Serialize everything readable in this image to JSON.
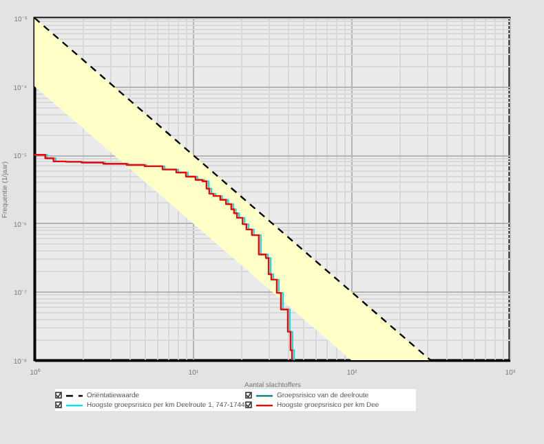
{
  "chart_data": {
    "type": "step",
    "xlabel": "Aantal slachtoffers",
    "ylabel": "Frequentie (1/jaar)",
    "log": "xy",
    "grid": true,
    "legend": "bottom",
    "xlim": [
      1,
      1000
    ],
    "ylim": [
      1e-08,
      0.001
    ],
    "xticks": [
      {
        "value": 1,
        "label": "10⁰"
      },
      {
        "value": 10,
        "label": "10¹"
      },
      {
        "value": 100,
        "label": "10²"
      },
      {
        "value": 1000,
        "label": "10³"
      }
    ],
    "yticks": [
      {
        "value": 1e-08,
        "label": "10⁻⁸"
      },
      {
        "value": 1e-07,
        "label": "10⁻⁷"
      },
      {
        "value": 1e-06,
        "label": "10⁻⁶"
      },
      {
        "value": 1e-05,
        "label": "10⁻⁵"
      },
      {
        "value": 0.0001,
        "label": "10⁻⁴"
      },
      {
        "value": 0.001,
        "label": "10⁻³"
      }
    ],
    "series": [
      {
        "type": "line",
        "name": "Oriëntatiewaarde",
        "color": "#000000",
        "line_style": "dashed",
        "x": [
          1,
          10,
          100,
          316.2
        ],
        "values": [
          0.001,
          1e-05,
          1e-07,
          1e-08
        ],
        "lower": [
          0.0001,
          1e-06,
          1e-08,
          1e-08
        ],
        "upper": [
          0.001,
          1e-05,
          1e-07,
          1e-08
        ]
      },
      {
        "name": "Groepsrisico van de deelroute",
        "color": "#008080"
      },
      {
        "name": "Hoogste groepsrisico per km Deelroute 1, 747-1744",
        "color": "#00e5ee",
        "x": [
          1,
          1.2,
          1.36,
          1.63,
          2.04,
          2.8,
          3.93,
          5.1,
          6.63,
          8.1,
          9.3,
          10.7,
          11.8,
          12.6,
          13.1,
          13.9,
          15.3,
          16.7,
          18.0,
          18.7,
          19.6,
          21.2,
          22.5,
          24.3,
          26.9,
          29.8,
          31.0,
          32.2,
          34.9,
          37.1,
          41.0,
          42.6,
          43.6
        ],
        "values": [
          1e-05,
          8.9e-06,
          8e-06,
          7.9e-06,
          7.7e-06,
          7.4e-06,
          7.1e-06,
          6.8e-06,
          6.1e-06,
          5.5e-06,
          4.8e-06,
          4.3e-06,
          4.1e-06,
          3.2e-06,
          2.7e-06,
          2.5e-06,
          2.2e-06,
          1.9e-06,
          1.6e-06,
          1.4e-06,
          1.2e-06,
          9.7e-07,
          8.1e-07,
          6.7e-07,
          3.5e-07,
          3.1e-07,
          1.8e-07,
          1.5e-07,
          9.6e-08,
          5.5e-08,
          2.6e-08,
          1.4e-08,
          1e-08
        ]
      },
      {
        "name": "Hoogste groepsrisico per km Dee",
        "color": "#ff0000",
        "x": [
          1,
          1.17,
          1.32,
          1.58,
          1.98,
          2.72,
          3.82,
          4.96,
          6.44,
          7.86,
          9.05,
          10.4,
          11.5,
          12.2,
          12.7,
          13.5,
          14.9,
          16.2,
          17.5,
          18.2,
          19.0,
          20.6,
          21.8,
          23.6,
          26.1,
          28.9,
          30.1,
          31.3,
          33.9,
          36.0,
          39.8,
          41.4,
          42.3
        ],
        "values": [
          1e-05,
          8.9e-06,
          8e-06,
          7.9e-06,
          7.7e-06,
          7.4e-06,
          7.1e-06,
          6.8e-06,
          6.1e-06,
          5.5e-06,
          4.8e-06,
          4.3e-06,
          4.1e-06,
          3.2e-06,
          2.7e-06,
          2.5e-06,
          2.2e-06,
          1.9e-06,
          1.6e-06,
          1.4e-06,
          1.2e-06,
          9.7e-07,
          8.1e-07,
          6.7e-07,
          3.5e-07,
          3.1e-07,
          1.8e-07,
          1.5e-07,
          9.6e-08,
          5.5e-08,
          2.6e-08,
          1.4e-08,
          1e-08
        ]
      }
    ]
  }
}
